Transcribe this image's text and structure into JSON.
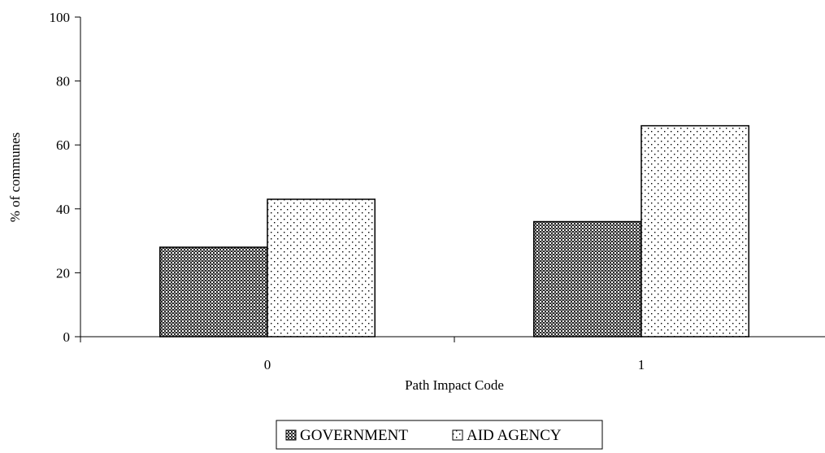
{
  "chart_data": {
    "type": "bar",
    "title": "",
    "xlabel": "Path Impact Code",
    "ylabel": "% of communes",
    "categories": [
      "0",
      "1"
    ],
    "series": [
      {
        "name": "GOVERNMENT",
        "values": [
          28,
          36
        ],
        "pattern": "crosshatch",
        "color": "#000000"
      },
      {
        "name": "AID AGENCY",
        "values": [
          43,
          66
        ],
        "pattern": "dots",
        "color": "#000000"
      }
    ],
    "ylim": [
      0,
      100
    ],
    "yticks": [
      0,
      20,
      40,
      60,
      80,
      100
    ],
    "grid": false,
    "legend": "bottom-center"
  }
}
